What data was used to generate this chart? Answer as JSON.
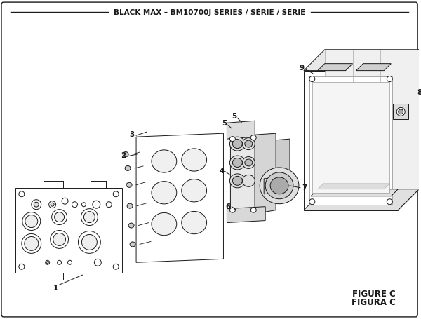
{
  "title": "BLACK MAX – BM10700J SERIES / SÉRIE / SERIE",
  "figure_label": "FIGURE C",
  "figura_label": "FIGURA C",
  "bg_color": "#ffffff",
  "border_color": "#1a1a1a",
  "line_color": "#1a1a1a",
  "text_color": "#1a1a1a",
  "lw": 0.7
}
